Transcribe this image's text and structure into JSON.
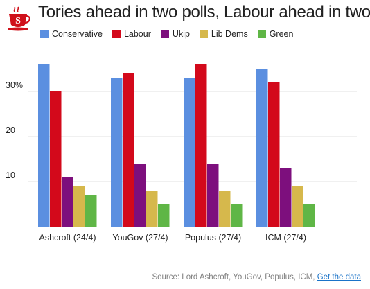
{
  "title": "Tories ahead in two polls, Labour ahead in two",
  "logo": {
    "letter": "S",
    "icon": "teacup-logo-icon",
    "color": "#d0111b"
  },
  "source": {
    "text": "Source: Lord Ashcroft, YouGov, Populus, ICM,",
    "link": "Get the data"
  },
  "chart_data": {
    "type": "bar",
    "title": "Tories ahead in two polls, Labour ahead in two",
    "xlabel": "",
    "ylabel": "",
    "ylim": [
      0,
      40
    ],
    "yticks": [
      {
        "value": 10,
        "label": "10"
      },
      {
        "value": 20,
        "label": "20"
      },
      {
        "value": 30,
        "label": "30%"
      }
    ],
    "grid": true,
    "legend": "top-left",
    "categories": [
      "Ashcroft (24/4)",
      "YouGov (27/4)",
      "Populus (27/4)",
      "ICM (27/4)"
    ],
    "series": [
      {
        "name": "Conservative",
        "color": "#5b8fe0",
        "values": [
          36,
          33,
          33,
          35
        ]
      },
      {
        "name": "Labour",
        "color": "#d3091b",
        "values": [
          30,
          34,
          36,
          32
        ]
      },
      {
        "name": "Ukip",
        "color": "#7d0f7d",
        "values": [
          11,
          14,
          14,
          13
        ]
      },
      {
        "name": "Lib Dems",
        "color": "#d6b84c",
        "values": [
          9,
          8,
          8,
          9
        ]
      },
      {
        "name": "Green",
        "color": "#5fb646",
        "values": [
          7,
          5,
          5,
          5
        ]
      }
    ]
  }
}
